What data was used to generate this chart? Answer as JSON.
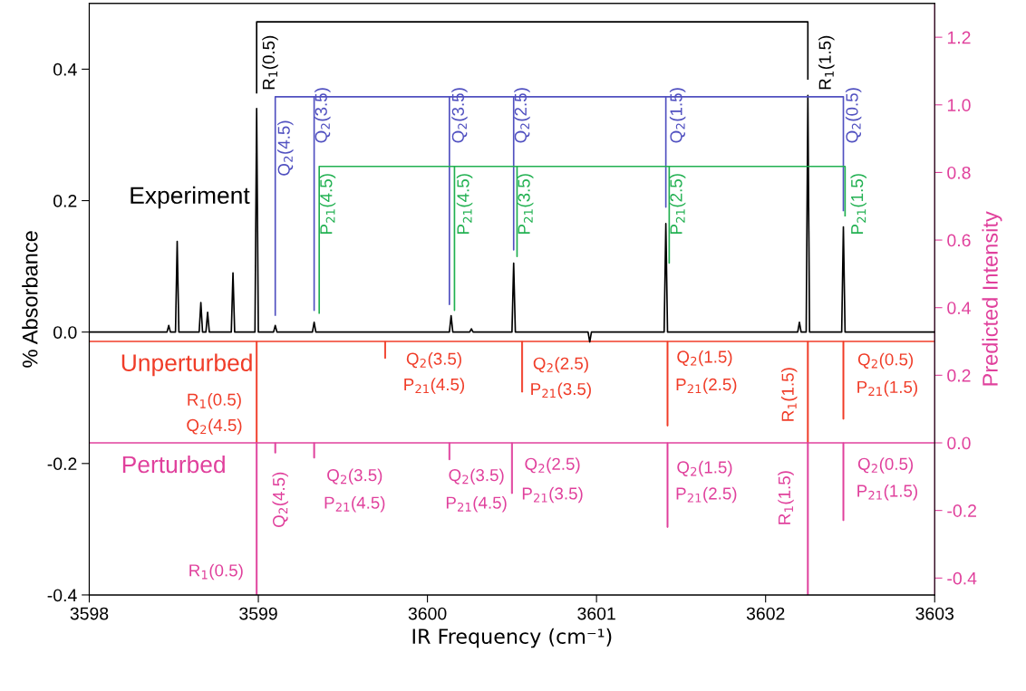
{
  "chart_data": {
    "type": "line",
    "xlabel": "IR Frequency (cm⁻¹)",
    "ylabel": "% Absorbance",
    "y2label": "Predicted Intensity",
    "xlim": [
      3598,
      3603
    ],
    "xticks": [
      3598,
      3599,
      3600,
      3601,
      3602,
      3603
    ],
    "ylim": [
      -0.4,
      0.5
    ],
    "yticks": [
      -0.4,
      -0.2,
      {
        "value": 0,
        "label": "0.0"
      },
      0.2,
      0.4
    ],
    "y2lim": [
      -0.45,
      1.3
    ],
    "y2ticks": [
      -0.4,
      -0.2,
      {
        "value": 0,
        "label": "0.0"
      },
      0.2,
      0.4,
      0.6,
      0.8,
      {
        "value": 1,
        "label": "1.0"
      },
      1.2
    ],
    "grid": false,
    "legend": false,
    "series": [
      {
        "name": "Experiment",
        "color": "#000000",
        "x": [
          3598.0,
          3598.46,
          3598.47,
          3598.48,
          3598.51,
          3598.52,
          3598.53,
          3598.65,
          3598.66,
          3598.67,
          3598.69,
          3598.7,
          3598.71,
          3598.84,
          3598.85,
          3598.86,
          3598.98,
          3598.99,
          3599.0,
          3599.09,
          3599.1,
          3599.11,
          3599.32,
          3599.33,
          3599.34,
          3600.13,
          3600.14,
          3600.15,
          3600.25,
          3600.26,
          3600.27,
          3600.5,
          3600.51,
          3600.52,
          3600.95,
          3600.96,
          3600.97,
          3601.4,
          3601.41,
          3601.42,
          3602.19,
          3602.2,
          3602.21,
          3602.24,
          3602.25,
          3602.26,
          3602.45,
          3602.46,
          3602.47,
          3603.0
        ],
        "values": [
          0,
          0,
          0.01,
          0,
          0,
          0.138,
          0,
          0,
          0.045,
          0,
          0,
          0.03,
          0,
          0,
          0.09,
          0,
          0,
          0.34,
          0,
          0,
          0.01,
          0,
          0,
          0.015,
          0,
          0,
          0.025,
          0,
          0,
          0.005,
          0,
          0,
          0.105,
          0,
          0,
          -0.015,
          0,
          0,
          0.165,
          0,
          0,
          0.015,
          0,
          0,
          0.36,
          0,
          0,
          0.16,
          0,
          0
        ]
      },
      {
        "color": "#000000",
        "x": [
          3598.99,
          3598.99,
          3602.25,
          3602.25
        ],
        "values": [
          0.364,
          0.472,
          0.472,
          0.385
        ]
      },
      {
        "color": "#5050c0",
        "x": [
          3599.1,
          3599.1,
          3599.33,
          3599.33,
          3599.33,
          3600.13,
          3600.13,
          3600.13,
          3600.51,
          3600.51,
          3600.51,
          3601.41,
          3601.41,
          3601.41,
          3602.46,
          3602.46
        ],
        "values": [
          0.026,
          0.358,
          0.358,
          0.033,
          0.358,
          0.358,
          0.042,
          0.358,
          0.358,
          0.125,
          0.358,
          0.358,
          0.19,
          0.358,
          0.358,
          0.185
        ]
      },
      {
        "color": "#20b050",
        "x": [
          3599.36,
          3599.36,
          3600.16,
          3600.16,
          3600.16,
          3600.53,
          3600.53,
          3600.53,
          3601.43,
          3601.43,
          3601.43,
          3602.47,
          3602.47
        ],
        "values": [
          0.029,
          0.252,
          0.252,
          0.033,
          0.252,
          0.252,
          0.115,
          0.252,
          0.252,
          0.105,
          0.252,
          0.252,
          0.177
        ]
      },
      {
        "name": "Unperturbed",
        "type": "bar",
        "axis": "y2",
        "color": "#f03c28",
        "x": [
          3598.99,
          3599.75,
          3600.56,
          3601.42,
          3602.25,
          3602.46
        ],
        "base": [
          0.3,
          0.3,
          0.3,
          0.3,
          0.3,
          0.3
        ],
        "values": [
          -0.3,
          -0.05,
          -0.15,
          -0.25,
          -0.3,
          -0.23
        ]
      },
      {
        "name": "Perturbed",
        "type": "bar",
        "axis": "y2",
        "color": "#e0409c",
        "x": [
          3598.99,
          3599.1,
          3599.33,
          3600.13,
          3600.5,
          3601.42,
          3602.25,
          3602.46
        ],
        "base": [
          0,
          0,
          0,
          0,
          0,
          0,
          0,
          0
        ],
        "values": [
          -0.45,
          -0.03,
          -0.045,
          -0.05,
          -0.15,
          -0.25,
          -0.45,
          -0.23
        ]
      }
    ],
    "ref_lines": [
      {
        "axis": "y2",
        "value": 0.3,
        "color": "#f03c28"
      },
      {
        "axis": "y2",
        "value": 0,
        "color": "#e0409c"
      }
    ],
    "annotations": [
      "R$_{1}$(0.5)",
      "R$_{1}$(1.5)",
      "Q$_{2}$(4.5)",
      "Q$_{2}$(3.5)",
      "Q$_{2}$(3.5)",
      "Q$_{2}$(2.5)",
      "Q$_{2}$(1.5)",
      "Q$_{2}$(0.5)",
      "P$_{21}$(4.5)",
      "P$_{21}$(4.5)",
      "P$_{21}$(3.5)",
      "P$_{21}$(2.5)",
      "P$_{21}$(1.5)",
      "R$_{1}$(0.5)",
      "Q$_{2}$(4.5)",
      "Q$_{2}$(3.5)",
      "P$_{21}$(4.5)",
      "Q$_{2}$(2.5)",
      "P$_{21}$(3.5)",
      "Q$_{2}$(1.5)",
      "P$_{21}$(2.5)",
      "R$_{1}$(1.5)",
      "Q$_{2}$(0.5)",
      "P$_{21}$(1.5)",
      "Q$_{2}$(4.5)",
      "Q$_{2}$(3.5)",
      "P$_{21}$(4.5)",
      "Q$_{2}$(3.5)",
      "P$_{21}$(4.5)",
      "Q$_{2}$(2.5)",
      "P$_{21}$(3.5)",
      "Q$_{2}$(1.5)",
      "P$_{21}$(2.5)",
      "R$_{1}$(1.5)",
      "Q$_{2}$(0.5)",
      "P$_{21}$(1.5)",
      "R$_{1}$(0.5)"
    ]
  }
}
